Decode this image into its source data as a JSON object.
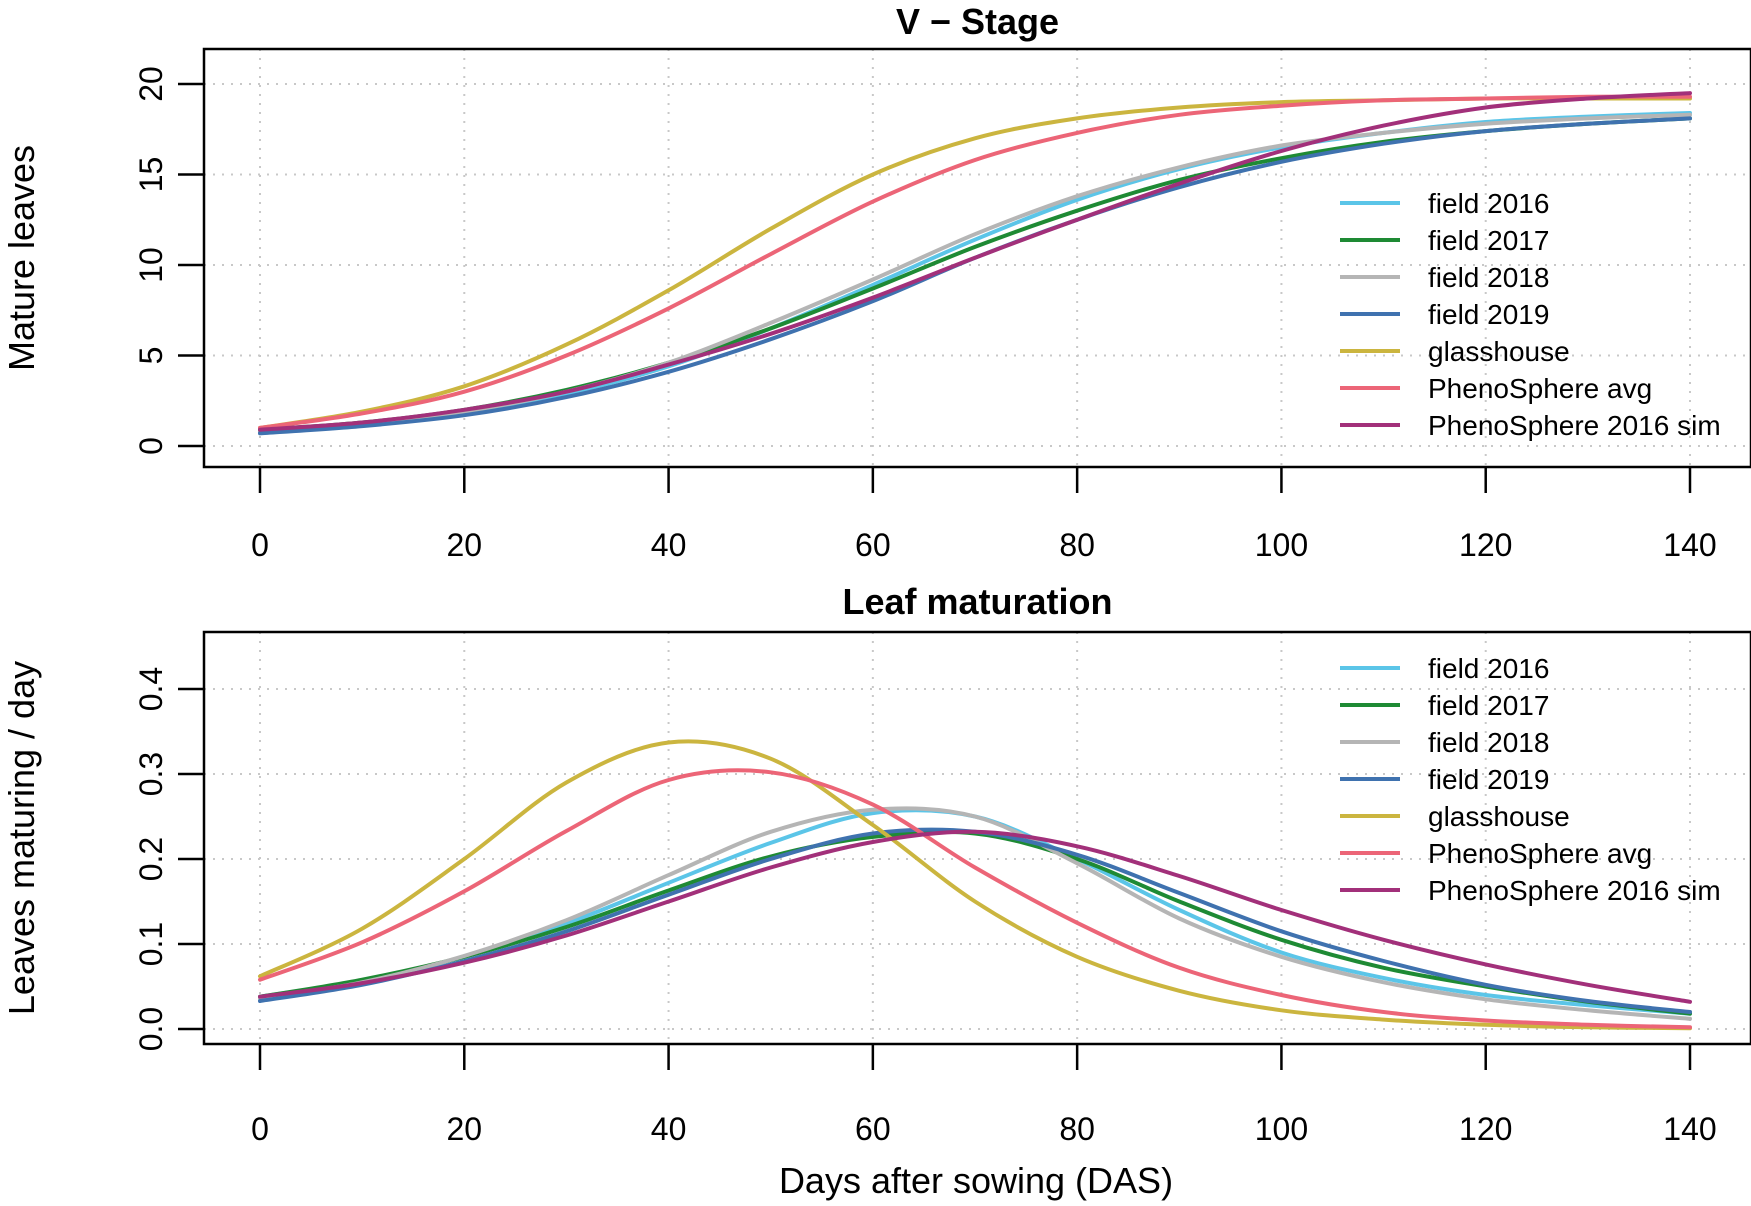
{
  "xlabel": "Days after sowing (DAS)",
  "series_styles": [
    {
      "name": "field 2016",
      "color": "#5BC5E8"
    },
    {
      "name": "field 2017",
      "color": "#1E8A34"
    },
    {
      "name": "field 2018",
      "color": "#B5B5B5"
    },
    {
      "name": "field 2019",
      "color": "#3F72AF"
    },
    {
      "name": "glasshouse",
      "color": "#CBB53F"
    },
    {
      "name": "PhenoSphere avg",
      "color": "#EC6577"
    },
    {
      "name": "PhenoSphere 2016 sim",
      "color": "#A2307A"
    }
  ],
  "chart_data": [
    {
      "type": "line",
      "title": "V − Stage",
      "xlabel": "",
      "ylabel": "Mature leaves",
      "xlim": [
        0,
        140
      ],
      "ylim": [
        0,
        20
      ],
      "xticks": [
        "0",
        "20",
        "40",
        "60",
        "80",
        "100",
        "120",
        "140"
      ],
      "yticks": [
        "0",
        "5",
        "10",
        "15",
        "20"
      ],
      "legend": "right",
      "grid": true,
      "x": [
        0,
        10,
        20,
        30,
        40,
        50,
        60,
        70,
        80,
        90,
        100,
        110,
        120,
        130,
        140
      ],
      "series": [
        {
          "name": "field 2016",
          "values": [
            0.8,
            1.2,
            1.9,
            2.9,
            4.4,
            6.5,
            8.9,
            11.4,
            13.6,
            15.3,
            16.5,
            17.3,
            17.9,
            18.2,
            18.4
          ]
        },
        {
          "name": "field 2017",
          "values": [
            0.9,
            1.3,
            2.0,
            3.1,
            4.6,
            6.5,
            8.7,
            11.0,
            13.0,
            14.7,
            15.9,
            16.8,
            17.4,
            17.8,
            18.1
          ]
        },
        {
          "name": "field 2018",
          "values": [
            0.8,
            1.2,
            1.9,
            3.0,
            4.6,
            6.8,
            9.2,
            11.7,
            13.8,
            15.4,
            16.6,
            17.3,
            17.8,
            18.1,
            18.3
          ]
        },
        {
          "name": "field 2019",
          "values": [
            0.7,
            1.1,
            1.7,
            2.7,
            4.1,
            5.9,
            8.0,
            10.4,
            12.5,
            14.3,
            15.7,
            16.7,
            17.4,
            17.8,
            18.1
          ]
        },
        {
          "name": "glasshouse",
          "values": [
            1.0,
            1.9,
            3.3,
            5.6,
            8.6,
            12.0,
            15.0,
            17.0,
            18.1,
            18.7,
            19.0,
            19.1,
            19.2,
            19.2,
            19.2
          ]
        },
        {
          "name": "PhenoSphere avg",
          "values": [
            1.0,
            1.8,
            3.0,
            5.0,
            7.6,
            10.6,
            13.5,
            15.8,
            17.3,
            18.3,
            18.8,
            19.1,
            19.2,
            19.3,
            19.3
          ]
        },
        {
          "name": "PhenoSphere 2016 sim",
          "values": [
            0.9,
            1.3,
            2.0,
            3.0,
            4.5,
            6.2,
            8.2,
            10.4,
            12.5,
            14.5,
            16.3,
            17.7,
            18.7,
            19.2,
            19.5
          ]
        }
      ]
    },
    {
      "type": "line",
      "title": "Leaf maturation",
      "xlabel": "Days after sowing (DAS)",
      "ylabel": "Leaves maturing / day",
      "xlim": [
        0,
        140
      ],
      "ylim": [
        0,
        0.4
      ],
      "xticks": [
        "0",
        "20",
        "40",
        "60",
        "80",
        "100",
        "120",
        "140"
      ],
      "yticks": [
        "0.0",
        "0.1",
        "0.2",
        "0.3",
        "0.4"
      ],
      "legend": "top-right",
      "grid": true,
      "x": [
        0,
        10,
        20,
        30,
        40,
        50,
        60,
        70,
        80,
        90,
        100,
        110,
        120,
        130,
        140
      ],
      "series": [
        {
          "name": "field 2016",
          "values": [
            0.038,
            0.057,
            0.085,
            0.124,
            0.172,
            0.219,
            0.254,
            0.25,
            0.2,
            0.14,
            0.09,
            0.06,
            0.04,
            0.028,
            0.018
          ]
        },
        {
          "name": "field 2017",
          "values": [
            0.038,
            0.058,
            0.085,
            0.12,
            0.163,
            0.203,
            0.226,
            0.23,
            0.2,
            0.15,
            0.105,
            0.072,
            0.05,
            0.032,
            0.018
          ]
        },
        {
          "name": "field 2018",
          "values": [
            0.036,
            0.055,
            0.086,
            0.128,
            0.181,
            0.232,
            0.258,
            0.25,
            0.195,
            0.13,
            0.085,
            0.055,
            0.035,
            0.022,
            0.012
          ]
        },
        {
          "name": "field 2019",
          "values": [
            0.033,
            0.052,
            0.08,
            0.115,
            0.158,
            0.2,
            0.23,
            0.232,
            0.205,
            0.16,
            0.115,
            0.08,
            0.052,
            0.033,
            0.02
          ]
        },
        {
          "name": "glasshouse",
          "values": [
            0.062,
            0.118,
            0.2,
            0.29,
            0.337,
            0.318,
            0.24,
            0.15,
            0.085,
            0.045,
            0.022,
            0.011,
            0.005,
            0.002,
            0.001
          ]
        },
        {
          "name": "PhenoSphere avg",
          "values": [
            0.058,
            0.102,
            0.162,
            0.233,
            0.293,
            0.302,
            0.264,
            0.19,
            0.125,
            0.072,
            0.04,
            0.02,
            0.01,
            0.005,
            0.002
          ]
        },
        {
          "name": "PhenoSphere 2016 sim",
          "values": [
            0.038,
            0.054,
            0.078,
            0.11,
            0.15,
            0.19,
            0.22,
            0.232,
            0.215,
            0.18,
            0.14,
            0.105,
            0.076,
            0.052,
            0.032
          ]
        }
      ]
    }
  ]
}
